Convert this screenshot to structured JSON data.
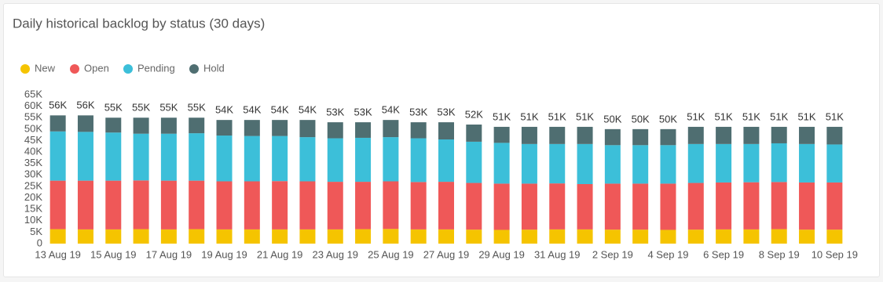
{
  "chart_data": {
    "type": "stacked-bar",
    "title": "Daily historical backlog by status (30 days)",
    "categories": [
      "13 Aug 19",
      null,
      "15 Aug 19",
      null,
      "17 Aug 19",
      null,
      "19 Aug 19",
      null,
      "21 Aug 19",
      null,
      "23 Aug 19",
      null,
      "25 Aug 19",
      null,
      "27 Aug 19",
      null,
      "29 Aug 19",
      null,
      "31 Aug 19",
      null,
      "2 Sep 19",
      null,
      "4 Sep 19",
      null,
      "6 Sep 19",
      null,
      "8 Sep 19",
      null,
      "10 Sep 19"
    ],
    "series": [
      {
        "name": "New",
        "color": "#f5c400",
        "values": [
          6300,
          6200,
          6200,
          6300,
          6200,
          6300,
          6200,
          6200,
          6200,
          6200,
          6200,
          6300,
          6400,
          6200,
          6200,
          6100,
          6000,
          6100,
          6200,
          6200,
          6100,
          6100,
          6000,
          6100,
          6200,
          6200,
          6300,
          6100,
          6100
        ]
      },
      {
        "name": "Open",
        "color": "#ef5858",
        "values": [
          21200,
          21300,
          21300,
          21300,
          21300,
          21200,
          21000,
          21000,
          21100,
          21000,
          20800,
          20700,
          20800,
          20700,
          20800,
          20400,
          20200,
          20100,
          20100,
          19800,
          20100,
          20100,
          20200,
          20400,
          20500,
          20600,
          20600,
          20600,
          20600
        ]
      },
      {
        "name": "Pending",
        "color": "#3cbfd9",
        "values": [
          21500,
          21300,
          21000,
          20400,
          20500,
          20700,
          20000,
          19800,
          19700,
          19300,
          19000,
          19200,
          19300,
          19100,
          18500,
          18000,
          17800,
          17300,
          17200,
          17500,
          16800,
          16800,
          16800,
          17000,
          16800,
          16700,
          16900,
          16800,
          16600
        ]
      },
      {
        "name": "Hold",
        "color": "#4f6e71",
        "values": [
          7000,
          7200,
          6500,
          7000,
          7000,
          6800,
          6800,
          7000,
          7000,
          7500,
          7000,
          6800,
          7500,
          7000,
          7500,
          7500,
          7000,
          7500,
          7500,
          7500,
          7000,
          7000,
          7000,
          7500,
          7500,
          7500,
          7200,
          7500,
          7700
        ]
      }
    ],
    "total_labels": [
      "56K",
      "56K",
      "55K",
      "55K",
      "55K",
      "55K",
      "54K",
      "54K",
      "54K",
      "54K",
      "53K",
      "53K",
      "54K",
      "53K",
      "53K",
      "52K",
      "51K",
      "51K",
      "51K",
      "51K",
      "50K",
      "50K",
      "50K",
      "51K",
      "51K",
      "51K",
      "51K",
      "51K",
      "51K"
    ],
    "ylim": [
      0,
      65000
    ],
    "yticks": [
      0,
      {
        "value": 5000,
        "label": "5K"
      },
      {
        "value": 10000,
        "label": "10K"
      },
      {
        "value": 15000,
        "label": "15K"
      },
      {
        "value": 20000,
        "label": "20K"
      },
      {
        "value": 25000,
        "label": "25K"
      },
      {
        "value": 30000,
        "label": "30K"
      },
      {
        "value": 35000,
        "label": "35K"
      },
      {
        "value": 40000,
        "label": "40K"
      },
      {
        "value": 45000,
        "label": "45K"
      },
      {
        "value": 50000,
        "label": "50K"
      },
      {
        "value": 55000,
        "label": "55K"
      },
      {
        "value": 60000,
        "label": "60K"
      },
      {
        "value": 65000,
        "label": "65K"
      }
    ],
    "grid": false,
    "legend": "top-left"
  }
}
